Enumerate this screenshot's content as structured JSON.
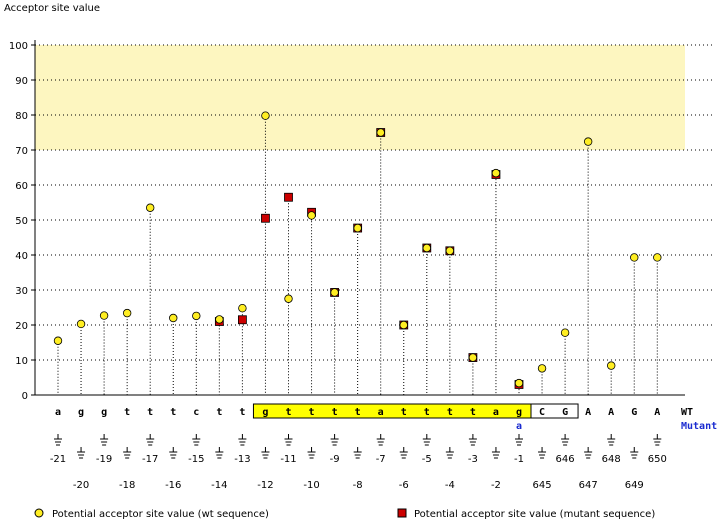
{
  "chart_data": {
    "type": "scatter",
    "title": "Acceptor site value",
    "ylim": [
      0,
      100
    ],
    "yticks": [
      0,
      10,
      20,
      30,
      40,
      50,
      60,
      70,
      80,
      90,
      100
    ],
    "grid": "horizontal dotted",
    "highlight_band": [
      70,
      100
    ],
    "positions": [
      "-21",
      "-20",
      "-19",
      "-18",
      "-17",
      "-16",
      "-15",
      "-14",
      "-13",
      "-12",
      "-11",
      "-10",
      "-9",
      "-8",
      "-7",
      "-6",
      "-5",
      "-4",
      "-3",
      "-2",
      "-1",
      "645",
      "646",
      "647",
      "648",
      "649",
      "650"
    ],
    "wt_sequence": [
      "a",
      "g",
      "g",
      "t",
      "t",
      "t",
      "c",
      "t",
      "t",
      "g",
      "t",
      "t",
      "t",
      "t",
      "a",
      "t",
      "t",
      "t",
      "t",
      "a",
      "g",
      "C",
      "G",
      "A",
      "A",
      "G",
      "A"
    ],
    "mutant_sequence": [
      "",
      "",
      "",
      "",
      "",
      "",
      "",
      "",
      "",
      "",
      "",
      "",
      "",
      "",
      "",
      "",
      "",
      "",
      "",
      "",
      "a",
      "",
      "",
      "",
      "",
      "",
      ""
    ],
    "series": [
      {
        "name": "Potential acceptor site value (wt sequence)",
        "marker": "yellow circle",
        "values": [
          15.5,
          20.3,
          22.7,
          23.4,
          53.5,
          22.0,
          22.6,
          21.6,
          24.8,
          79.8,
          27.5,
          51.3,
          29.3,
          47.7,
          75.0,
          20.0,
          42.0,
          41.2,
          10.7,
          63.4,
          3.4,
          7.6,
          17.8,
          72.4,
          8.4,
          39.3,
          39.3
        ]
      },
      {
        "name": "Potential acceptor site value (mutant sequence)",
        "marker": "red square",
        "values": [
          null,
          null,
          null,
          null,
          null,
          null,
          null,
          21.0,
          21.5,
          50.5,
          56.5,
          52.2,
          29.3,
          47.7,
          75.0,
          20.0,
          42.0,
          41.2,
          10.7,
          63.0,
          3.0,
          null,
          null,
          null,
          null,
          null,
          null
        ]
      }
    ],
    "row_labels": {
      "wt": "WT",
      "mutant": "Mutant"
    }
  },
  "colors": {
    "band": "#fdf6c0",
    "box": "#ffff00",
    "wt_marker": "#ffee22",
    "mut_marker": "#cc0000",
    "mutant_text": "#1a2bd0"
  }
}
